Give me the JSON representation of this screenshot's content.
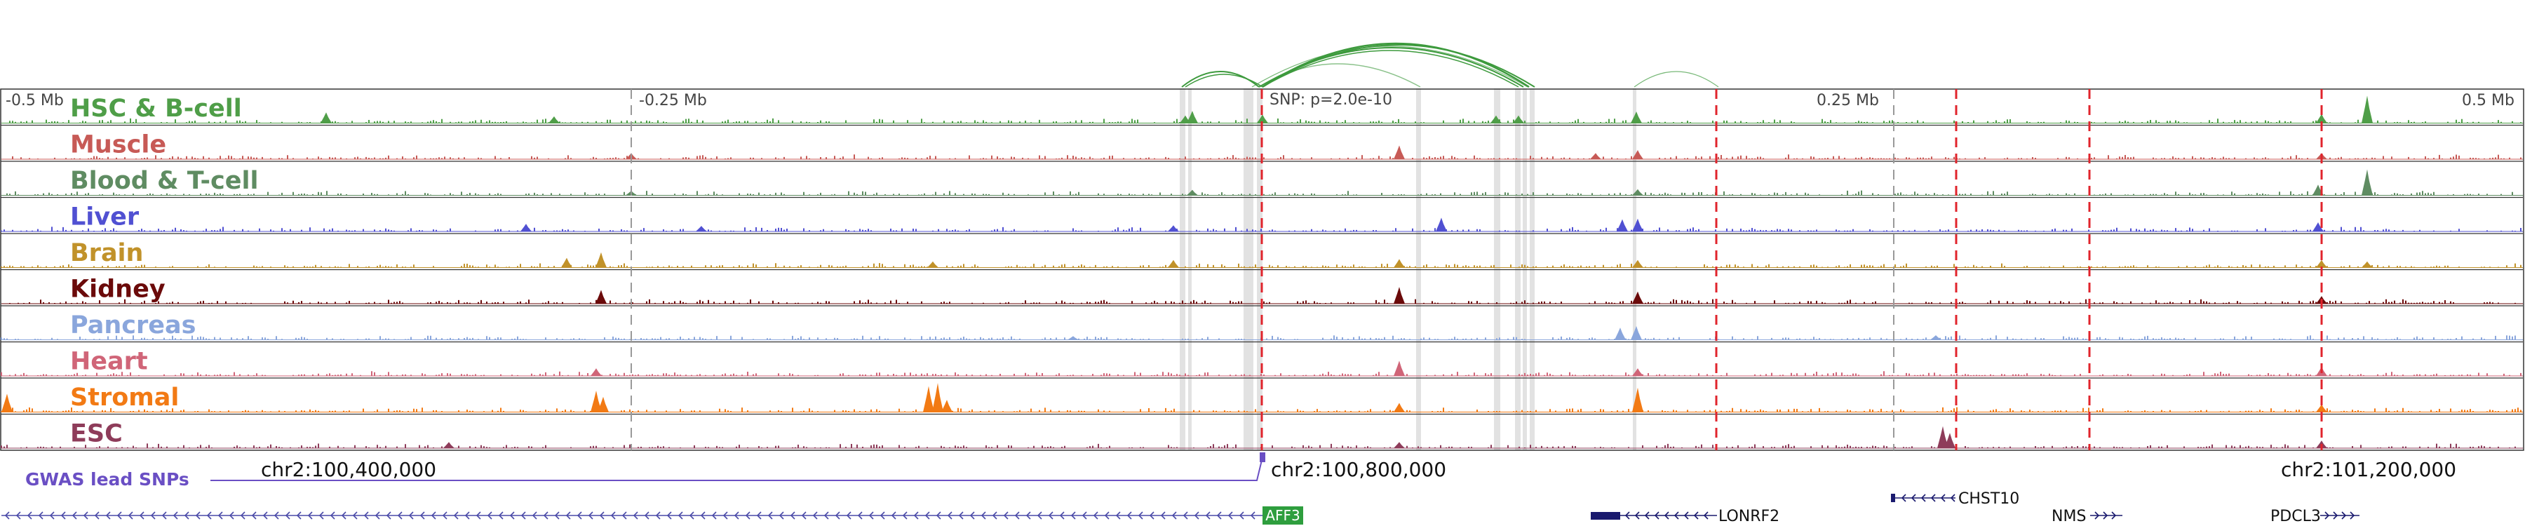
{
  "position_labels": [
    "-0.5 Mb",
    "-0.25 Mb",
    "0.25 Mb",
    "0.5 Mb"
  ],
  "snp_label": "SNP: p=2.0e-10",
  "coordinates": [
    "chr2:100,400,000",
    "chr2:100,800,000",
    "chr2:101,200,000"
  ],
  "gwas_label": "GWAS lead SNPs",
  "tracks": [
    {
      "name": "HSC & B-cell",
      "color": "#4f9e48"
    },
    {
      "name": "Muscle",
      "color": "#c75a56"
    },
    {
      "name": "Blood & T-cell",
      "color": "#5f8c62"
    },
    {
      "name": "Liver",
      "color": "#5050d2"
    },
    {
      "name": "Brain",
      "color": "#c1922a"
    },
    {
      "name": "Kidney",
      "color": "#6b0a0a"
    },
    {
      "name": "Pancreas",
      "color": "#8aa6dc"
    },
    {
      "name": "Heart",
      "color": "#d06578"
    },
    {
      "name": "Stromal",
      "color": "#f27a14"
    },
    {
      "name": "ESC",
      "color": "#8e3c5a"
    }
  ],
  "genes": [
    {
      "name": "AFF3",
      "boxed": true,
      "box_color": "#2e9e3e"
    },
    {
      "name": "LONRF2",
      "boxed": false
    },
    {
      "name": "CHST10",
      "boxed": false
    },
    {
      "name": "NMS",
      "boxed": false
    },
    {
      "name": "PDCL3",
      "boxed": false
    }
  ],
  "colors": {
    "loop": "#3d9a3d",
    "highlight": "#e2e2e2",
    "snp_line": "#e0242c",
    "gwas": "#6a4fc4",
    "gene_line": "#4a4aa8",
    "gene_box": "#1a1a6e",
    "grid": "#999999"
  }
}
